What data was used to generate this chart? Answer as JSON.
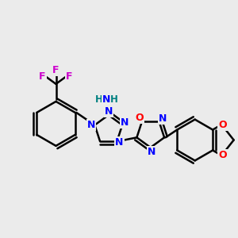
{
  "bg_color": "#ebebeb",
  "atom_colors": {
    "N": "#0000ff",
    "O": "#ff0000",
    "C": "#000000",
    "F": "#cc00cc",
    "H": "#008080"
  },
  "bond_color": "#000000",
  "bond_width": 1.8
}
